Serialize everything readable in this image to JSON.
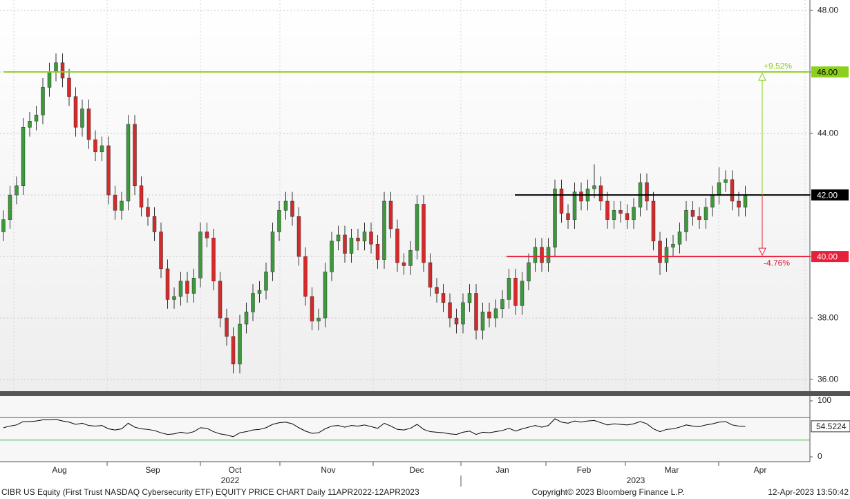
{
  "chart_data": {
    "type": "candlestick",
    "open": [
      40.8,
      41.2,
      42.0,
      42.3,
      44.2,
      44.4,
      44.6,
      45.5,
      46.0,
      46.3,
      45.8,
      45.2,
      44.2,
      44.8,
      43.8,
      43.4,
      43.6,
      42.0,
      41.5,
      41.8,
      44.3,
      42.3,
      41.6,
      41.3,
      40.8,
      39.6,
      38.6,
      38.7,
      39.2,
      38.8,
      39.3,
      40.8,
      40.6,
      39.2,
      38.0,
      37.4,
      36.5,
      37.8,
      38.2,
      38.8,
      38.9,
      39.5,
      40.8,
      41.5,
      41.8,
      41.3,
      40.0,
      38.7,
      37.9,
      38.0,
      39.5,
      40.5,
      40.7,
      40.1,
      40.6,
      40.5,
      40.8,
      40.4,
      39.9,
      41.8,
      40.9,
      39.8,
      39.7,
      40.2,
      41.7,
      39.8,
      39.0,
      38.8,
      38.5,
      38.0,
      37.8,
      38.5,
      38.8,
      37.6,
      38.2,
      38.0,
      38.3,
      38.6,
      39.3,
      38.4,
      39.2,
      39.8,
      40.3,
      39.8,
      40.3,
      42.2,
      41.4,
      41.2,
      42.1,
      41.8,
      42.2,
      42.3,
      41.8,
      41.2,
      41.5,
      41.4,
      41.2,
      41.6,
      42.4,
      41.8,
      40.5,
      39.8,
      40.3,
      40.4,
      40.8,
      41.5,
      41.3,
      41.2,
      41.6,
      42.0,
      42.4,
      42.5,
      41.8,
      41.6
    ],
    "high": [
      41.5,
      42.3,
      42.6,
      44.5,
      44.7,
      44.9,
      45.8,
      46.3,
      46.6,
      46.6,
      46.1,
      45.5,
      45.1,
      45.1,
      44.1,
      43.9,
      43.9,
      42.3,
      42.1,
      44.6,
      44.6,
      42.6,
      41.9,
      41.6,
      41.1,
      39.9,
      39.0,
      39.5,
      39.5,
      39.6,
      41.1,
      41.1,
      40.9,
      39.5,
      38.3,
      37.7,
      38.1,
      38.5,
      39.1,
      39.2,
      39.8,
      41.1,
      41.8,
      42.1,
      42.1,
      41.6,
      40.3,
      39.0,
      38.3,
      39.8,
      40.8,
      41.0,
      41.0,
      40.9,
      40.9,
      41.1,
      41.1,
      40.7,
      42.1,
      42.1,
      41.2,
      40.1,
      40.5,
      42.0,
      42.0,
      40.1,
      39.3,
      39.1,
      38.8,
      38.3,
      38.8,
      39.1,
      39.1,
      38.5,
      38.5,
      38.6,
      38.9,
      39.6,
      39.6,
      39.5,
      40.1,
      40.6,
      40.6,
      40.6,
      42.5,
      42.5,
      41.7,
      42.4,
      42.4,
      42.5,
      43.0,
      42.6,
      42.1,
      41.8,
      41.8,
      41.7,
      41.9,
      42.7,
      42.7,
      42.1,
      40.8,
      40.6,
      40.7,
      41.1,
      41.8,
      41.8,
      41.6,
      41.9,
      42.3,
      42.9,
      42.8,
      42.8,
      42.1,
      42.3
    ],
    "low": [
      40.5,
      40.9,
      41.7,
      42.0,
      43.9,
      44.1,
      44.3,
      45.2,
      45.7,
      45.5,
      44.9,
      43.9,
      43.9,
      43.5,
      43.1,
      43.1,
      41.7,
      41.2,
      41.2,
      41.5,
      42.0,
      41.3,
      41.0,
      40.5,
      39.3,
      38.3,
      38.3,
      38.4,
      38.5,
      38.5,
      39.0,
      40.3,
      38.9,
      37.7,
      37.1,
      36.2,
      36.2,
      37.5,
      37.9,
      38.5,
      38.6,
      39.2,
      40.5,
      41.2,
      41.0,
      39.7,
      38.4,
      37.6,
      37.6,
      37.7,
      39.2,
      40.2,
      39.8,
      39.8,
      40.2,
      40.2,
      40.1,
      39.6,
      39.6,
      40.6,
      39.5,
      39.4,
      39.4,
      39.9,
      39.5,
      38.7,
      38.5,
      38.2,
      37.7,
      37.5,
      37.5,
      38.2,
      37.3,
      37.3,
      37.7,
      37.7,
      38.0,
      38.3,
      38.1,
      38.1,
      38.9,
      39.5,
      39.5,
      39.5,
      40.0,
      41.1,
      40.9,
      40.9,
      41.5,
      41.5,
      41.9,
      41.5,
      40.9,
      40.9,
      41.1,
      40.9,
      40.9,
      41.3,
      41.5,
      40.2,
      39.4,
      39.5,
      40.0,
      40.1,
      40.5,
      41.0,
      40.9,
      40.9,
      41.3,
      41.7,
      42.1,
      41.5,
      41.3,
      41.3
    ],
    "close": [
      41.2,
      42.0,
      42.3,
      44.2,
      44.4,
      44.6,
      45.5,
      46.0,
      46.3,
      45.8,
      45.2,
      44.2,
      44.8,
      43.8,
      43.4,
      43.6,
      42.0,
      41.5,
      41.8,
      44.3,
      42.3,
      41.6,
      41.3,
      40.8,
      39.6,
      38.6,
      38.7,
      39.2,
      38.8,
      39.3,
      40.8,
      40.6,
      39.2,
      38.0,
      37.4,
      36.5,
      37.8,
      38.2,
      38.8,
      38.9,
      39.5,
      40.8,
      41.5,
      41.8,
      41.3,
      40.0,
      38.7,
      37.9,
      38.0,
      39.5,
      40.5,
      40.7,
      40.1,
      40.6,
      40.5,
      40.8,
      40.4,
      39.9,
      41.8,
      40.9,
      39.8,
      39.7,
      40.2,
      41.7,
      39.8,
      39.0,
      38.8,
      38.5,
      38.0,
      37.8,
      38.5,
      38.8,
      37.6,
      38.2,
      38.0,
      38.3,
      38.6,
      39.3,
      38.4,
      39.2,
      39.8,
      40.3,
      39.8,
      40.3,
      42.2,
      41.4,
      41.2,
      42.1,
      41.8,
      42.2,
      42.3,
      41.8,
      41.2,
      41.5,
      41.4,
      41.2,
      41.6,
      42.4,
      41.8,
      40.5,
      39.8,
      40.3,
      40.4,
      40.8,
      41.5,
      41.3,
      41.2,
      41.6,
      42.0,
      42.4,
      42.5,
      41.8,
      41.6,
      42.0
    ],
    "up_color": "#3c9a3c",
    "down_color": "#d42a2a",
    "ylim": [
      35.62,
      48.34
    ],
    "yticks": [
      {
        "value": 36,
        "label": "36.00"
      },
      {
        "value": 38,
        "label": "38.00"
      },
      {
        "value": 40,
        "label": "40.00"
      },
      {
        "value": 42,
        "label": "42.00"
      },
      {
        "value": 44,
        "label": "44.00"
      },
      {
        "value": 46,
        "label": "46.00"
      },
      {
        "value": 48,
        "label": "48.00"
      }
    ],
    "grid": true,
    "levels": [
      {
        "value": 46,
        "label": "46.00",
        "color": "#8ccf1c"
      },
      {
        "value": 42,
        "label": "42.00",
        "color": "#000000"
      },
      {
        "value": 40,
        "label": "40.00",
        "color": "#e8203a"
      }
    ],
    "arrows": [
      {
        "label": "+9.52%",
        "color": "#8ccf1c"
      },
      {
        "label": "-4.76%",
        "color": "#e8203a"
      }
    ],
    "months": [
      "Aug",
      "Sep",
      "Oct",
      "Nov",
      "Dec",
      "Jan",
      "Feb",
      "Mar",
      "Apr"
    ],
    "years": [
      "2022",
      "2023"
    ],
    "indicator": {
      "type": "line",
      "values": [
        52,
        55,
        57,
        63,
        63,
        64,
        66,
        66,
        67,
        64,
        62,
        58,
        60,
        56,
        55,
        56,
        50,
        48,
        50,
        60,
        53,
        50,
        49,
        47,
        43,
        40,
        41,
        44,
        42,
        45,
        52,
        51,
        45,
        41,
        39,
        36,
        43,
        45,
        48,
        49,
        52,
        58,
        61,
        62,
        59,
        52,
        46,
        42,
        43,
        50,
        55,
        56,
        53,
        56,
        55,
        57,
        54,
        51,
        60,
        55,
        49,
        48,
        51,
        58,
        49,
        45,
        44,
        43,
        41,
        40,
        44,
        46,
        40,
        44,
        43,
        45,
        47,
        51,
        46,
        50,
        53,
        56,
        53,
        56,
        68,
        62,
        60,
        64,
        62,
        64,
        65,
        61,
        57,
        59,
        58,
        57,
        59,
        63,
        59,
        50,
        45,
        49,
        50,
        53,
        57,
        55,
        54,
        57,
        59,
        62,
        63,
        57,
        55,
        54.5224
      ],
      "value_label": "54.5224",
      "color": "#000000",
      "ylim": [
        -8.6,
        108.6
      ],
      "yticks": [
        0,
        100
      ],
      "levels": [
        {
          "value": 70,
          "color": "#d42a2a"
        },
        {
          "value": 30,
          "color": "#3cb83c"
        }
      ]
    },
    "footer": {
      "left": "CIBR US Equity (First Trust NASDAQ Cybersecurity ETF) EQUITY PRICE CHART  Daily 11APR2022-12APR2023",
      "center": "Copyright© 2023 Bloomberg Finance L.P.",
      "right": "12-Apr-2023 13:50:42"
    }
  }
}
